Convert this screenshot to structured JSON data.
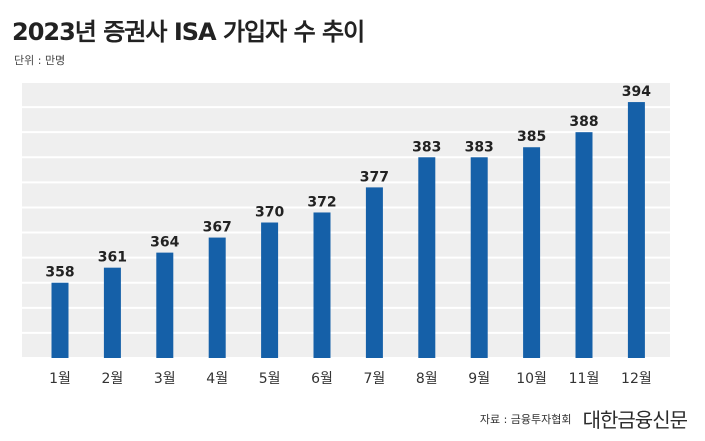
{
  "header": {
    "title": "2023년 증권사 ISA 가입자 수 추이",
    "unit": "단위 : 만명"
  },
  "footer": {
    "source": "자료 : 금융투자협회",
    "brand": "대한금융신문"
  },
  "colors": {
    "bar": "#1560a8",
    "plot_background": "#efefef",
    "grid": "#ffffff",
    "text": "#222222"
  },
  "chart_data": {
    "type": "bar",
    "title": "2023년 증권사 ISA 가입자 수 추이",
    "ylabel": "",
    "xlabel": "",
    "unit": "만명",
    "categories": [
      "1월",
      "2월",
      "3월",
      "4월",
      "5월",
      "6월",
      "7월",
      "8월",
      "9월",
      "10월",
      "11월",
      "12월"
    ],
    "values": [
      358,
      361,
      364,
      367,
      370,
      372,
      377,
      383,
      383,
      385,
      388,
      394
    ],
    "ylim": [
      343,
      398
    ],
    "grid": true,
    "legend": false,
    "data_labels": true
  }
}
